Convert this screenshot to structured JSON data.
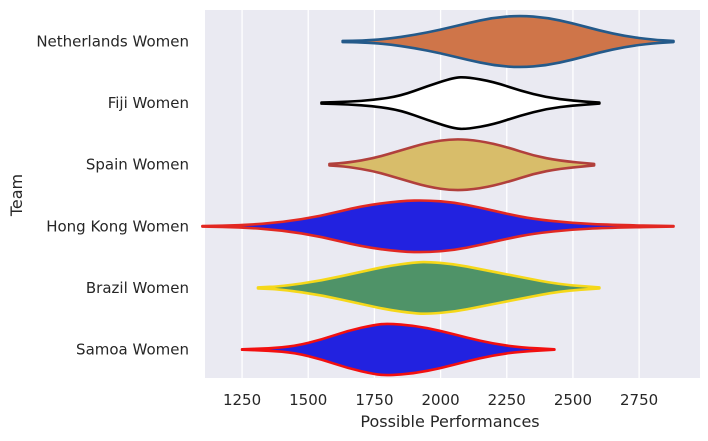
{
  "chart_data": {
    "type": "violin",
    "orientation": "horizontal",
    "xlabel": "Possible Performances",
    "ylabel": "Team",
    "xlim": [
      1110,
      2980
    ],
    "xticks": [
      1250,
      1500,
      1750,
      2000,
      2250,
      2500,
      2750
    ],
    "grid": true,
    "background": "#eaeaf2",
    "categories": [
      "Netherlands Women",
      "Fiji Women",
      "Spain Women",
      "Hong Kong Women",
      "Brazil Women",
      "Samoa Women"
    ],
    "series": [
      {
        "category": "Netherlands Women",
        "fill": "#cf7549",
        "stroke": "#245a8a",
        "min": 1630,
        "max": 2880,
        "profile": [
          [
            1630,
            0.02
          ],
          [
            1700,
            0.03
          ],
          [
            1800,
            0.1
          ],
          [
            1900,
            0.25
          ],
          [
            2000,
            0.45
          ],
          [
            2100,
            0.7
          ],
          [
            2200,
            0.92
          ],
          [
            2300,
            1.0
          ],
          [
            2400,
            0.92
          ],
          [
            2500,
            0.7
          ],
          [
            2600,
            0.42
          ],
          [
            2700,
            0.2
          ],
          [
            2800,
            0.07
          ],
          [
            2880,
            0.02
          ]
        ]
      },
      {
        "category": "Fiji Women",
        "fill": "#ffffff",
        "stroke": "#000000",
        "min": 1550,
        "max": 2600,
        "profile": [
          [
            1550,
            0.02
          ],
          [
            1650,
            0.05
          ],
          [
            1750,
            0.12
          ],
          [
            1850,
            0.28
          ],
          [
            1950,
            0.65
          ],
          [
            2050,
            0.98
          ],
          [
            2100,
            1.0
          ],
          [
            2200,
            0.82
          ],
          [
            2300,
            0.48
          ],
          [
            2400,
            0.22
          ],
          [
            2500,
            0.09
          ],
          [
            2600,
            0.02
          ]
        ]
      },
      {
        "category": "Spain Women",
        "fill": "#d8bd6a",
        "stroke": "#b1403c",
        "min": 1580,
        "max": 2580,
        "profile": [
          [
            1580,
            0.03
          ],
          [
            1650,
            0.08
          ],
          [
            1750,
            0.25
          ],
          [
            1850,
            0.55
          ],
          [
            1950,
            0.85
          ],
          [
            2050,
            1.0
          ],
          [
            2150,
            0.92
          ],
          [
            2250,
            0.68
          ],
          [
            2350,
            0.35
          ],
          [
            2450,
            0.15
          ],
          [
            2580,
            0.03
          ]
        ]
      },
      {
        "category": "Hong Kong Women",
        "fill": "#2222e0",
        "stroke": "#e22822",
        "min": 1100,
        "max": 2880,
        "profile": [
          [
            1100,
            0.01
          ],
          [
            1250,
            0.04
          ],
          [
            1400,
            0.15
          ],
          [
            1550,
            0.4
          ],
          [
            1700,
            0.78
          ],
          [
            1850,
            0.98
          ],
          [
            1950,
            1.0
          ],
          [
            2050,
            0.92
          ],
          [
            2150,
            0.72
          ],
          [
            2250,
            0.48
          ],
          [
            2350,
            0.28
          ],
          [
            2500,
            0.12
          ],
          [
            2650,
            0.05
          ],
          [
            2880,
            0.01
          ]
        ]
      },
      {
        "category": "Brazil Women",
        "fill": "#4f9368",
        "stroke": "#f5d81a",
        "min": 1310,
        "max": 2600,
        "profile": [
          [
            1310,
            0.02
          ],
          [
            1400,
            0.06
          ],
          [
            1550,
            0.28
          ],
          [
            1700,
            0.62
          ],
          [
            1800,
            0.84
          ],
          [
            1900,
            0.98
          ],
          [
            1950,
            1.0
          ],
          [
            2050,
            0.92
          ],
          [
            2150,
            0.72
          ],
          [
            2300,
            0.42
          ],
          [
            2450,
            0.13
          ],
          [
            2600,
            0.02
          ]
        ]
      },
      {
        "category": "Samoa Women",
        "fill": "#2222e0",
        "stroke": "#f21010",
        "min": 1250,
        "max": 2430,
        "profile": [
          [
            1250,
            0.01
          ],
          [
            1350,
            0.04
          ],
          [
            1450,
            0.13
          ],
          [
            1550,
            0.38
          ],
          [
            1650,
            0.72
          ],
          [
            1750,
            0.95
          ],
          [
            1800,
            1.0
          ],
          [
            1900,
            0.92
          ],
          [
            2000,
            0.72
          ],
          [
            2100,
            0.45
          ],
          [
            2200,
            0.22
          ],
          [
            2300,
            0.08
          ],
          [
            2430,
            0.01
          ]
        ]
      }
    ]
  }
}
